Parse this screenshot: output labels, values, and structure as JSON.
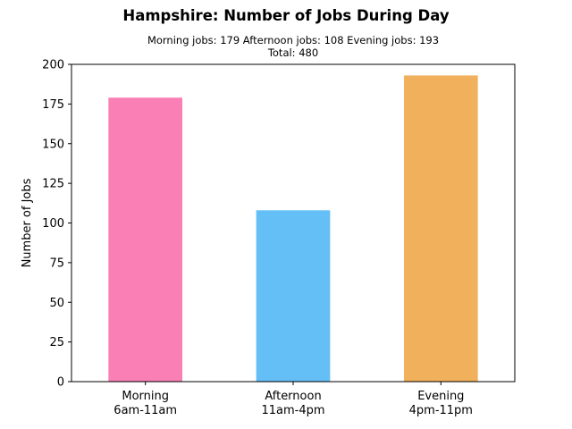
{
  "chart_data": {
    "type": "bar",
    "title": "Hampshire: Number of Jobs During Day",
    "subtitle_lines": [
      "Morning jobs: 179  Afternoon jobs: 108  Evening jobs: 193",
      "Total: 480"
    ],
    "categories": [
      [
        "Morning",
        "6am-11am"
      ],
      [
        "Afternoon",
        "11am-4pm"
      ],
      [
        "Evening",
        "4pm-11pm"
      ]
    ],
    "values": [
      179,
      108,
      193
    ],
    "colors": [
      "#f97fb5",
      "#64bff6",
      "#f0b05c"
    ],
    "ylabel": "Number of Jobs",
    "xlabel": "",
    "ylim": [
      0,
      200
    ],
    "yticks": [
      0,
      25,
      50,
      75,
      100,
      125,
      150,
      175,
      200
    ],
    "grid": false,
    "legend": "none"
  }
}
